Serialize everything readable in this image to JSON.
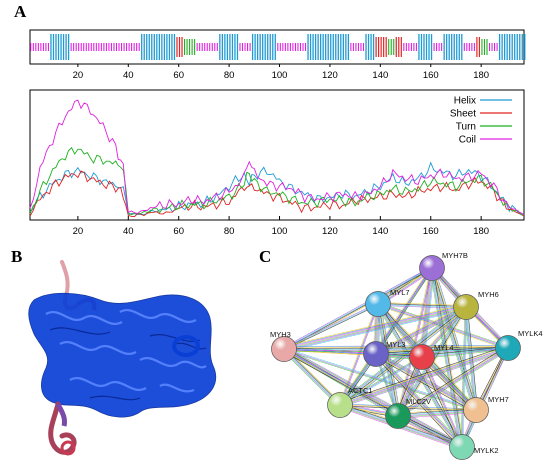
{
  "panels": {
    "a": "A",
    "b": "B",
    "c": "C"
  },
  "colors": {
    "helix": "#1f9bd4",
    "sheet": "#e02424",
    "turn": "#1fb01f",
    "coil": "#e020e0",
    "protein": "#0a3fd6",
    "protein_tail": "#c8506a"
  },
  "chart_data": [
    {
      "type": "bar",
      "title": "",
      "description_key": "secondary-structure-track",
      "xlim": [
        1,
        197
      ],
      "x_ticks": [
        "20",
        "40",
        "60",
        "80",
        "100",
        "120",
        "140",
        "160",
        "180"
      ],
      "segments": [
        {
          "class": "Coil",
          "start": 1,
          "end": 8
        },
        {
          "class": "Helix",
          "start": 9,
          "end": 16
        },
        {
          "class": "Coil",
          "start": 17,
          "end": 44
        },
        {
          "class": "Helix",
          "start": 45,
          "end": 58
        },
        {
          "class": "Sheet",
          "start": 59,
          "end": 61
        },
        {
          "class": "Turn",
          "start": 62,
          "end": 66
        },
        {
          "class": "Coil",
          "start": 67,
          "end": 75
        },
        {
          "class": "Helix",
          "start": 76,
          "end": 83
        },
        {
          "class": "Coil",
          "start": 84,
          "end": 88
        },
        {
          "class": "Helix",
          "start": 89,
          "end": 98
        },
        {
          "class": "Coil",
          "start": 99,
          "end": 110
        },
        {
          "class": "Helix",
          "start": 111,
          "end": 127
        },
        {
          "class": "Coil",
          "start": 128,
          "end": 133
        },
        {
          "class": "Helix",
          "start": 134,
          "end": 137
        },
        {
          "class": "Sheet",
          "start": 138,
          "end": 142
        },
        {
          "class": "Turn",
          "start": 143,
          "end": 145
        },
        {
          "class": "Sheet",
          "start": 146,
          "end": 148
        },
        {
          "class": "Coil",
          "start": 149,
          "end": 154
        },
        {
          "class": "Helix",
          "start": 155,
          "end": 160
        },
        {
          "class": "Coil",
          "start": 161,
          "end": 164
        },
        {
          "class": "Helix",
          "start": 165,
          "end": 172
        },
        {
          "class": "Coil",
          "start": 173,
          "end": 177
        },
        {
          "class": "Sheet",
          "start": 178,
          "end": 179
        },
        {
          "class": "Turn",
          "start": 180,
          "end": 182
        },
        {
          "class": "Coil",
          "start": 183,
          "end": 186
        },
        {
          "class": "Helix",
          "start": 187,
          "end": 197
        }
      ]
    },
    {
      "type": "line",
      "title": "",
      "xlabel": "",
      "ylabel": "",
      "xlim": [
        1,
        197
      ],
      "ylim": [
        0,
        1
      ],
      "x_ticks": [
        "20",
        "40",
        "60",
        "80",
        "100",
        "120",
        "140",
        "160",
        "180"
      ],
      "legend_position": "top-right",
      "x": [
        1,
        5,
        10,
        15,
        20,
        25,
        30,
        35,
        38,
        40,
        45,
        50,
        55,
        60,
        65,
        70,
        75,
        80,
        85,
        88,
        90,
        95,
        100,
        105,
        110,
        115,
        120,
        125,
        130,
        135,
        140,
        145,
        150,
        155,
        160,
        165,
        170,
        175,
        180,
        185,
        190,
        197
      ],
      "series": [
        {
          "name": "Helix",
          "values": [
            0.06,
            0.18,
            0.28,
            0.35,
            0.38,
            0.34,
            0.3,
            0.27,
            0.24,
            0.05,
            0.04,
            0.07,
            0.08,
            0.1,
            0.12,
            0.13,
            0.18,
            0.26,
            0.34,
            0.3,
            0.34,
            0.38,
            0.3,
            0.24,
            0.2,
            0.16,
            0.17,
            0.2,
            0.18,
            0.22,
            0.26,
            0.33,
            0.28,
            0.32,
            0.4,
            0.37,
            0.34,
            0.38,
            0.34,
            0.24,
            0.12,
            0.04
          ]
        },
        {
          "name": "Sheet",
          "values": [
            0.04,
            0.16,
            0.26,
            0.33,
            0.36,
            0.32,
            0.28,
            0.25,
            0.2,
            0.03,
            0.04,
            0.06,
            0.05,
            0.09,
            0.11,
            0.1,
            0.12,
            0.14,
            0.24,
            0.26,
            0.25,
            0.2,
            0.17,
            0.13,
            0.09,
            0.1,
            0.12,
            0.11,
            0.15,
            0.16,
            0.18,
            0.2,
            0.18,
            0.22,
            0.24,
            0.26,
            0.23,
            0.28,
            0.3,
            0.22,
            0.1,
            0.03
          ]
        },
        {
          "name": "Turn",
          "values": [
            0.05,
            0.22,
            0.38,
            0.5,
            0.55,
            0.48,
            0.46,
            0.43,
            0.4,
            0.05,
            0.05,
            0.08,
            0.09,
            0.11,
            0.12,
            0.12,
            0.15,
            0.18,
            0.26,
            0.36,
            0.3,
            0.22,
            0.2,
            0.16,
            0.13,
            0.14,
            0.16,
            0.15,
            0.13,
            0.18,
            0.2,
            0.24,
            0.22,
            0.24,
            0.3,
            0.28,
            0.26,
            0.3,
            0.32,
            0.24,
            0.1,
            0.04
          ]
        },
        {
          "name": "Coil",
          "values": [
            0.08,
            0.4,
            0.62,
            0.8,
            0.92,
            0.84,
            0.72,
            0.56,
            0.4,
            0.06,
            0.06,
            0.1,
            0.12,
            0.12,
            0.16,
            0.14,
            0.18,
            0.22,
            0.3,
            0.46,
            0.36,
            0.28,
            0.26,
            0.24,
            0.18,
            0.16,
            0.18,
            0.2,
            0.18,
            0.2,
            0.26,
            0.36,
            0.32,
            0.3,
            0.34,
            0.36,
            0.32,
            0.33,
            0.36,
            0.26,
            0.12,
            0.04
          ]
        }
      ]
    },
    {
      "type": "table",
      "title": "",
      "nodes": [
        {
          "name": "MYH7B",
          "color": "#9b6fd6"
        },
        {
          "name": "MYL7",
          "color": "#52b9e8"
        },
        {
          "name": "MYH6",
          "color": "#b8b43e"
        },
        {
          "name": "MYH3",
          "color": "#e8a8a8"
        },
        {
          "name": "MYL3",
          "color": "#6a62c6"
        },
        {
          "name": "MYL4",
          "color": "#e8404a"
        },
        {
          "name": "MYLK4",
          "color": "#1ea8b8"
        },
        {
          "name": "ACTC1",
          "color": "#b8e08a"
        },
        {
          "name": "MLC2V",
          "color": "#1a9a5a"
        },
        {
          "name": "MYH7",
          "color": "#f0c090"
        },
        {
          "name": "MYLK2",
          "color": "#7ed8b4"
        }
      ]
    }
  ]
}
